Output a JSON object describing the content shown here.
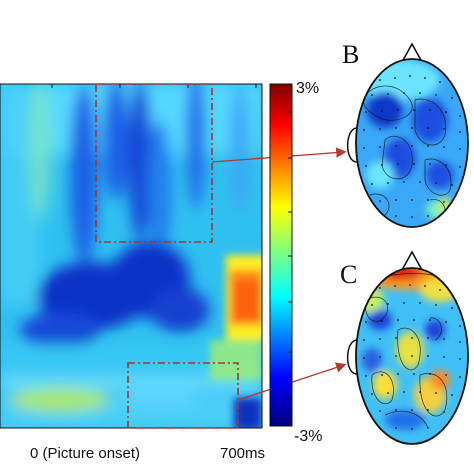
{
  "figure": {
    "colorbar": {
      "max_label": "3%",
      "min_label": "-3%",
      "colormap": "jet"
    },
    "x_axis": {
      "start_label": "0 (Picture onset)",
      "end_label": "700ms"
    },
    "panels": [
      {
        "letter": "B"
      },
      {
        "letter": "C"
      }
    ],
    "colors": {
      "roi_box": "#b0302a",
      "arrow": "#b03a2e",
      "outline": "#111111"
    }
  }
}
